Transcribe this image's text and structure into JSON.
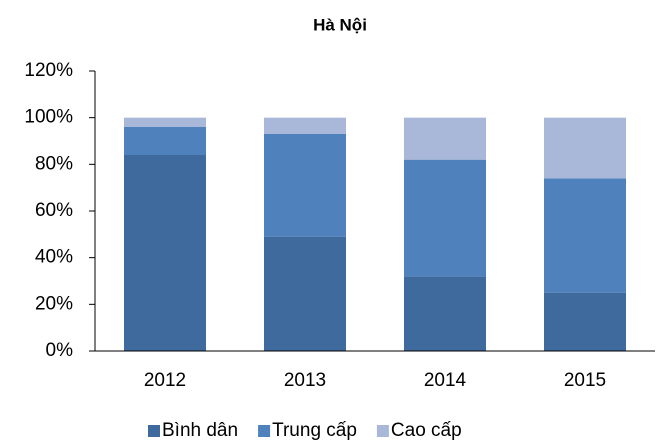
{
  "chart_data": {
    "type": "stacked_bar",
    "title": "Hà Nội",
    "categories": [
      "2012",
      "2013",
      "2014",
      "2015"
    ],
    "series": [
      {
        "name": "Bình dân",
        "color": "#3f6a9e",
        "values": [
          84,
          49,
          32,
          25
        ]
      },
      {
        "name": "Trung cấp",
        "color": "#4f81bd",
        "values": [
          12,
          44,
          50,
          49
        ]
      },
      {
        "name": "Cao cấp",
        "color": "#a9b8d8",
        "values": [
          4,
          7,
          18,
          26
        ]
      }
    ],
    "ylim": [
      0,
      120
    ],
    "yticks": [
      {
        "value": 0,
        "label": "0%"
      },
      {
        "value": 20,
        "label": "20%"
      },
      {
        "value": 40,
        "label": "40%"
      },
      {
        "value": 60,
        "label": "60%"
      },
      {
        "value": 80,
        "label": "80%"
      },
      {
        "value": 100,
        "label": "100%"
      },
      {
        "value": 120,
        "label": "120%"
      }
    ],
    "legend": "bottom",
    "grid": false
  }
}
